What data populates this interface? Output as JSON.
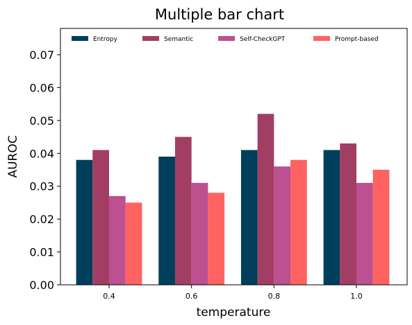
{
  "chart_data": {
    "type": "bar",
    "title": "Multiple bar chart",
    "xlabel": "temperature",
    "ylabel": "AUROC",
    "categories": [
      "0.4",
      "0.6",
      "0.8",
      "1.0"
    ],
    "series": [
      {
        "name": "Entropy",
        "color": "#003f5c",
        "values": [
          0.038,
          0.039,
          0.041,
          0.041
        ]
      },
      {
        "name": "Semantic",
        "color": "#a23e63",
        "values": [
          0.041,
          0.045,
          0.052,
          0.043
        ]
      },
      {
        "name": "Self-CheckGPT",
        "color": "#bc5090",
        "values": [
          0.027,
          0.031,
          0.036,
          0.031
        ]
      },
      {
        "name": "Prompt-based",
        "color": "#ff6361",
        "values": [
          0.025,
          0.028,
          0.038,
          0.035
        ]
      }
    ],
    "ylim": [
      0,
      0.078
    ],
    "yticks": [
      "0.00",
      "0.01",
      "0.02",
      "0.03",
      "0.04",
      "0.05",
      "0.06",
      "0.07"
    ],
    "grid": false,
    "legend_position": "top"
  }
}
